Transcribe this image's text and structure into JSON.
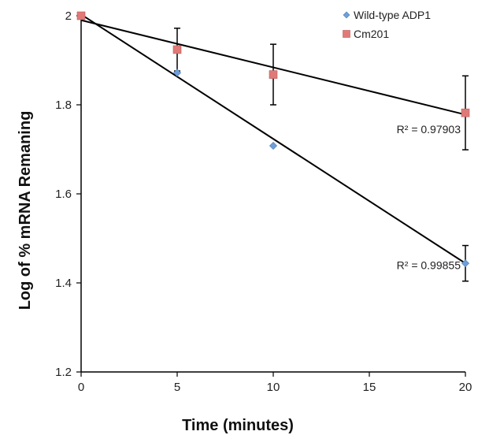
{
  "chart_data": {
    "type": "scatter",
    "title": "",
    "xlabel": "Time (minutes)",
    "ylabel": "Log of % mRNA Remaning",
    "xlim": [
      0,
      20
    ],
    "ylim": [
      1.2,
      2
    ],
    "x_ticks": [
      0,
      5,
      10,
      15,
      20
    ],
    "y_ticks": [
      1.2,
      1.4,
      1.6,
      1.8,
      2
    ],
    "x_tick_labels": [
      "0",
      "5",
      "10",
      "15",
      "20"
    ],
    "y_tick_labels": [
      "1.2",
      "1.4",
      "1.6",
      "1.8",
      "2"
    ],
    "grid": false,
    "legend_position": "top-right",
    "series": [
      {
        "name": "Wild-type ADP1",
        "marker": "diamond",
        "color": "#6f9fd8",
        "x": [
          0,
          5,
          10,
          20
        ],
        "y": [
          2.0,
          1.872,
          1.708,
          1.444
        ],
        "error": [
          null,
          null,
          null,
          0.04
        ],
        "trendline": {
          "x": [
            0,
            20
          ],
          "y": [
            2.003,
            1.444
          ]
        },
        "r2_label": "R² = 0.99855",
        "r2_anchor": {
          "x": 20,
          "y": 1.44
        }
      },
      {
        "name": "Cm201",
        "marker": "square",
        "color": "#e07a78",
        "x": [
          0,
          5,
          10,
          20
        ],
        "y": [
          2.0,
          1.924,
          1.868,
          1.782
        ],
        "error": [
          null,
          0.048,
          0.068,
          0.083
        ],
        "trendline": {
          "x": [
            0,
            20
          ],
          "y": [
            1.99,
            1.778
          ]
        },
        "r2_label": "R² = 0.97903",
        "r2_anchor": {
          "x": 20,
          "y": 1.745
        }
      }
    ]
  }
}
